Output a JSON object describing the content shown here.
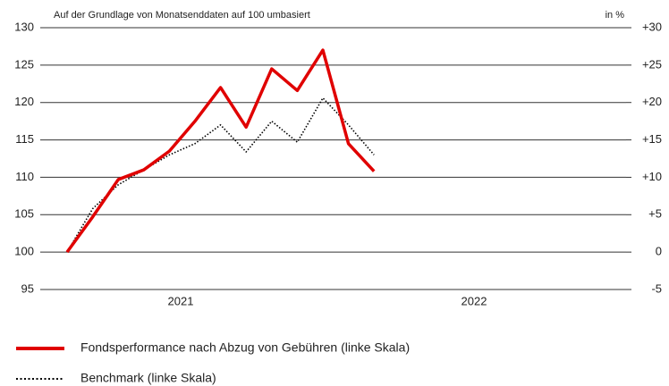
{
  "chart_data": {
    "type": "line",
    "subtitle": "Auf der Grundlage von Monatsenddaten auf 100 umbasiert",
    "y2_axis_label": "in %",
    "categories": [
      null,
      null,
      null,
      null,
      null,
      null,
      null,
      null,
      null,
      null,
      null,
      null,
      null
    ],
    "x_labels": [
      "2021",
      "2022"
    ],
    "series": [
      {
        "name": "Fondsperformance nach Abzug von Gebühren (linke Skala)",
        "color": "#e00000",
        "style": "solid",
        "values": [
          100,
          104.7,
          109.7,
          111,
          113.5,
          117.5,
          122,
          116.7,
          124.5,
          121.6,
          127,
          114.5,
          110.8
        ]
      },
      {
        "name": "Benchmark (linke Skala)",
        "color": "#000000",
        "style": "dotted",
        "values": [
          100,
          105.8,
          109,
          111,
          113,
          114.5,
          117,
          113.4,
          117.5,
          114.7,
          120.6,
          117,
          113
        ]
      }
    ],
    "ylim": [
      95,
      130
    ],
    "yticks": [
      95,
      100,
      105,
      110,
      115,
      120,
      125,
      130
    ],
    "y2lim": [
      -5,
      30
    ],
    "y2ticks": [
      -5,
      0,
      {
        "value": 5,
        "label": "+5"
      },
      {
        "value": 10,
        "label": "+10"
      },
      {
        "value": 15,
        "label": "+15"
      },
      {
        "value": 20,
        "label": "+20"
      },
      {
        "value": 25,
        "label": "+25"
      },
      {
        "value": 30,
        "label": "+30"
      }
    ],
    "grid": true
  }
}
